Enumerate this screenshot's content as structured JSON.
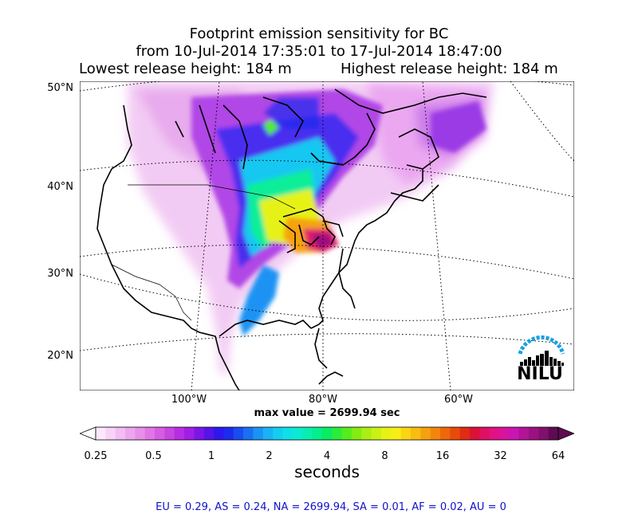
{
  "title": {
    "line1": "Footprint emission sensitivity for BC",
    "line2": "from 10-Jul-2014 17:35:01 to 17-Jul-2014 18:47:00",
    "lowest": "Lowest release height: 184 m",
    "highest": "Highest release height: 184 m"
  },
  "map": {
    "lat_labels": [
      "50°N",
      "40°N",
      "30°N",
      "20°N"
    ],
    "lon_labels": [
      "100°W",
      "80°W",
      "60°W"
    ],
    "max_value": "max value = 2699.94 sec",
    "logo_text": "NILU"
  },
  "colorbar": {
    "tick_labels": [
      "0.25",
      "0.5",
      "1",
      "2",
      "4",
      "8",
      "16",
      "32",
      "64"
    ],
    "units": "seconds",
    "colors": [
      "#fbe9fb",
      "#f7d3f7",
      "#f2bdf2",
      "#eda6ee",
      "#e78fe9",
      "#df76e4",
      "#d65de2",
      "#c845e2",
      "#b62ee3",
      "#a01ee6",
      "#7c16e7",
      "#5514e8",
      "#2e17ec",
      "#1d2bee",
      "#1a4cf0",
      "#1a6ff2",
      "#1a93f4",
      "#19b3f4",
      "#14cdf1",
      "#0ee0e7",
      "#0bead0",
      "#07eeb0",
      "#04ef8b",
      "#08ec62",
      "#2beb3c",
      "#55ec1e",
      "#83ec13",
      "#a9ee14",
      "#cbf015",
      "#e6f216",
      "#f7ee15",
      "#f9d612",
      "#f7bd10",
      "#f5a20e",
      "#f2860c",
      "#ee680b",
      "#e84a0a",
      "#e02c14",
      "#dc1038",
      "#e00f62",
      "#e21184",
      "#da139f",
      "#c915b2",
      "#b21397",
      "#9c1181",
      "#81106c",
      "#5e0b52"
    ]
  },
  "footer": "EU = 0.29,  AS = 0.24,  NA = 2699.94,  SA = 0.01,  AF = 0.02,  AU = 0"
}
